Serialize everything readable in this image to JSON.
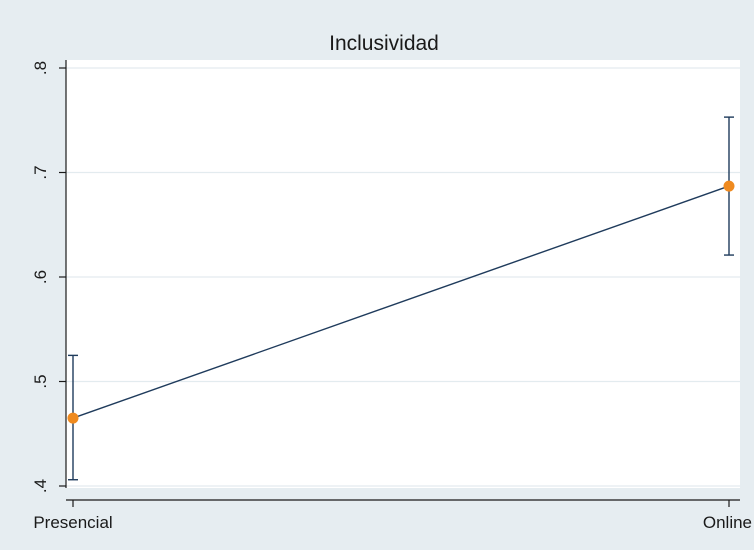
{
  "chart_data": {
    "type": "line",
    "title": "Inclusividad",
    "xlabel": "",
    "ylabel": "",
    "categories": [
      "Presencial",
      "Online"
    ],
    "ylim": [
      0.4,
      0.8
    ],
    "y_ticks": [
      0.4,
      0.5,
      0.6,
      0.7,
      0.8
    ],
    "y_tick_labels": [
      ".4",
      ".5",
      ".6",
      ".7",
      ".8"
    ],
    "series": [
      {
        "values": [
          0.465,
          0.687
        ],
        "ci_lower": [
          0.406,
          0.621
        ],
        "ci_upper": [
          0.525,
          0.753
        ]
      }
    ],
    "grid": "horizontal",
    "legend": "none"
  },
  "colors": {
    "background": "#e6edf1",
    "plot_area": "#ffffff",
    "gridline": "#e3ebef",
    "line": "#1f3b5c",
    "marker": "#ef8a1f",
    "error_bar": "#1f3b5c",
    "axis": "#1a1a1a"
  }
}
